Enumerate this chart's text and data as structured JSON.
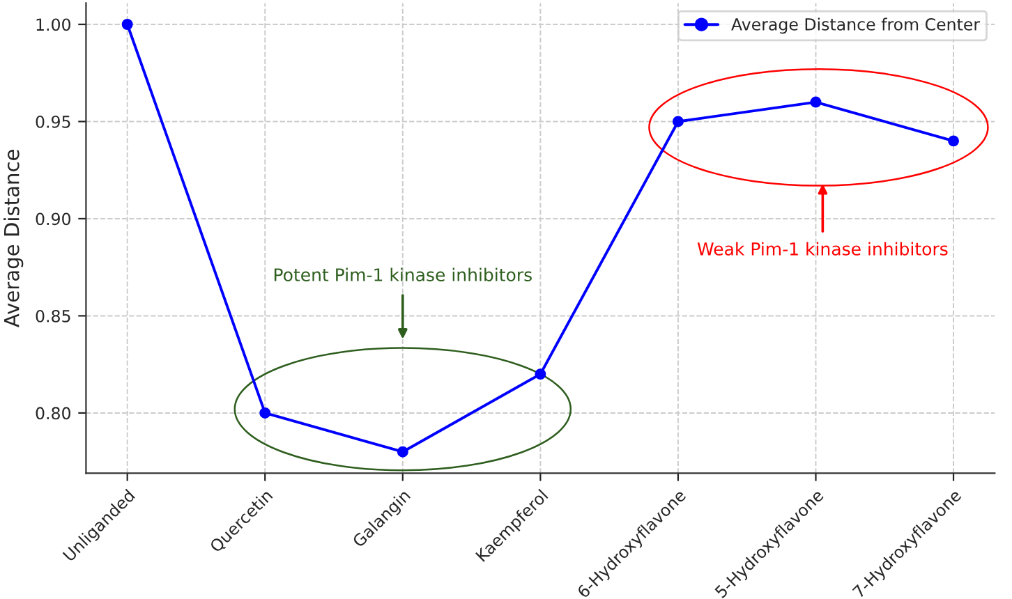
{
  "chart_data": {
    "type": "line",
    "ylabel": "Average Distance",
    "categories": [
      "Unliganded",
      "Quercetin",
      "Galangin",
      "Kaempferol",
      "6-Hydroxyflavone",
      "5-Hydroxyflavone",
      "7-Hydroxyflavone"
    ],
    "series": [
      {
        "name": "Average Distance from Center",
        "color": "#0000ff",
        "values": [
          1.0,
          0.8,
          0.78,
          0.82,
          0.95,
          0.96,
          0.94
        ]
      }
    ],
    "ylim": [
      0.769,
      1.011
    ],
    "yticks": [
      {
        "value": 0.8,
        "label": "0.80"
      },
      {
        "value": 0.85,
        "label": "0.85"
      },
      {
        "value": 0.9,
        "label": "0.90"
      },
      {
        "value": 0.95,
        "label": "0.95"
      },
      {
        "value": 1.0,
        "label": "1.00"
      }
    ],
    "annotations": [
      "Potent Pim-1 kinase inhibitors",
      "Weak Pim-1 kinase inhibitors"
    ],
    "grid": true,
    "legend": "top right",
    "marker": "circle",
    "line_style": "solid"
  }
}
